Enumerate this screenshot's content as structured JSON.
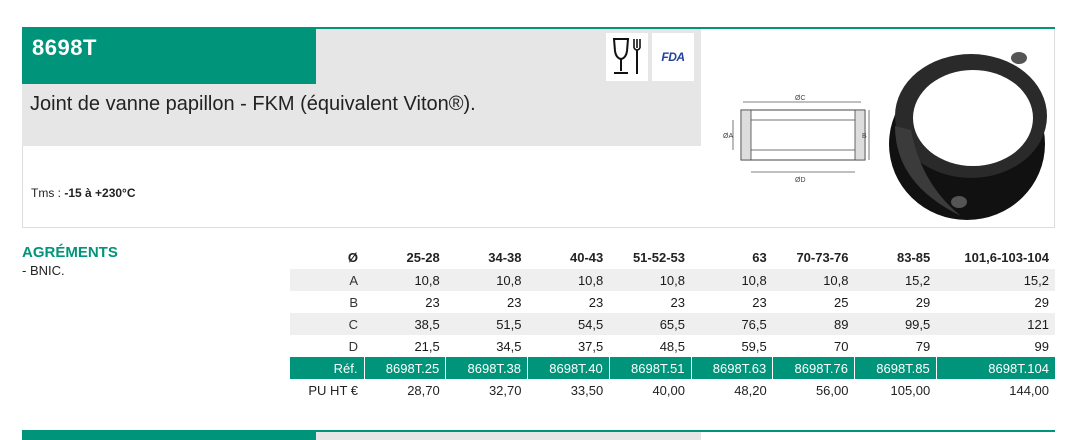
{
  "product": {
    "code": "8698T",
    "title": "Joint de vanne papillon - FKM (équivalent Viton®).",
    "tms_label": "Tms : ",
    "tms_value": "-15 à +230°C",
    "icons": [
      "food-contact-glass-fork-icon",
      "fda-icon"
    ],
    "fda_text": "FDA"
  },
  "drawing": {
    "labels": [
      "ØC",
      "ØD",
      "ØA",
      "B"
    ]
  },
  "agrements": {
    "heading": "AGRÉMENTS",
    "items": [
      "- BNIC."
    ]
  },
  "table": {
    "header_label": "Ø",
    "columns": [
      "25-28",
      "34-38",
      "40-43",
      "51-52-53",
      "63",
      "70-73-76",
      "83-85",
      "101,6-103-104"
    ],
    "rows": [
      {
        "label": "A",
        "values": [
          "10,8",
          "10,8",
          "10,8",
          "10,8",
          "10,8",
          "10,8",
          "15,2",
          "15,2"
        ]
      },
      {
        "label": "B",
        "values": [
          "23",
          "23",
          "23",
          "23",
          "23",
          "25",
          "29",
          "29"
        ]
      },
      {
        "label": "C",
        "values": [
          "38,5",
          "51,5",
          "54,5",
          "65,5",
          "76,5",
          "89",
          "99,5",
          "121"
        ]
      },
      {
        "label": "D",
        "values": [
          "21,5",
          "34,5",
          "37,5",
          "48,5",
          "59,5",
          "70",
          "79",
          "99"
        ]
      }
    ],
    "ref_label": "Réf.",
    "refs": [
      "8698T.25",
      "8698T.38",
      "8698T.40",
      "8698T.51",
      "8698T.63",
      "8698T.76",
      "8698T.85",
      "8698T.104"
    ],
    "price_label": "PU HT €",
    "prices": [
      "28,70",
      "32,70",
      "33,50",
      "40,00",
      "48,20",
      "56,00",
      "105,00",
      "144,00"
    ]
  },
  "colors": {
    "accent": "#00957a",
    "band": "#e6e6e6",
    "row_alt": "#efefef"
  }
}
